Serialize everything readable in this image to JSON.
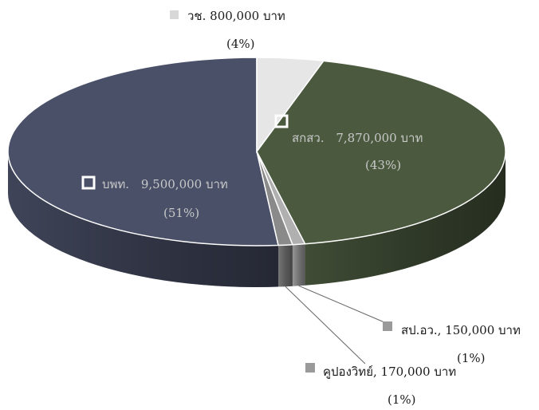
{
  "chart_data": {
    "type": "pie",
    "title": "",
    "unit": "บาท",
    "slices": [
      {
        "name": "สกสว.",
        "value": 7870000,
        "value_text": "7,870,000",
        "percent_text": "(43%)",
        "color": "#4b5a3f"
      },
      {
        "name": "สป.อว.,",
        "value": 150000,
        "value_text": "150,000",
        "percent_text": "(1%)",
        "color": "#b0b0b0"
      },
      {
        "name": "คูปองวิทย์,",
        "value": 170000,
        "value_text": "170,000",
        "percent_text": "(1%)",
        "color": "#8a8a8a"
      },
      {
        "name": "บพท.",
        "value": 9500000,
        "value_text": "9,500,000",
        "percent_text": "(51%)",
        "color": "#4a5068"
      },
      {
        "name": "วช.",
        "value": 800000,
        "value_text": "800,000",
        "percent_text": "(4%)",
        "color": "#e6e6e6"
      }
    ]
  }
}
